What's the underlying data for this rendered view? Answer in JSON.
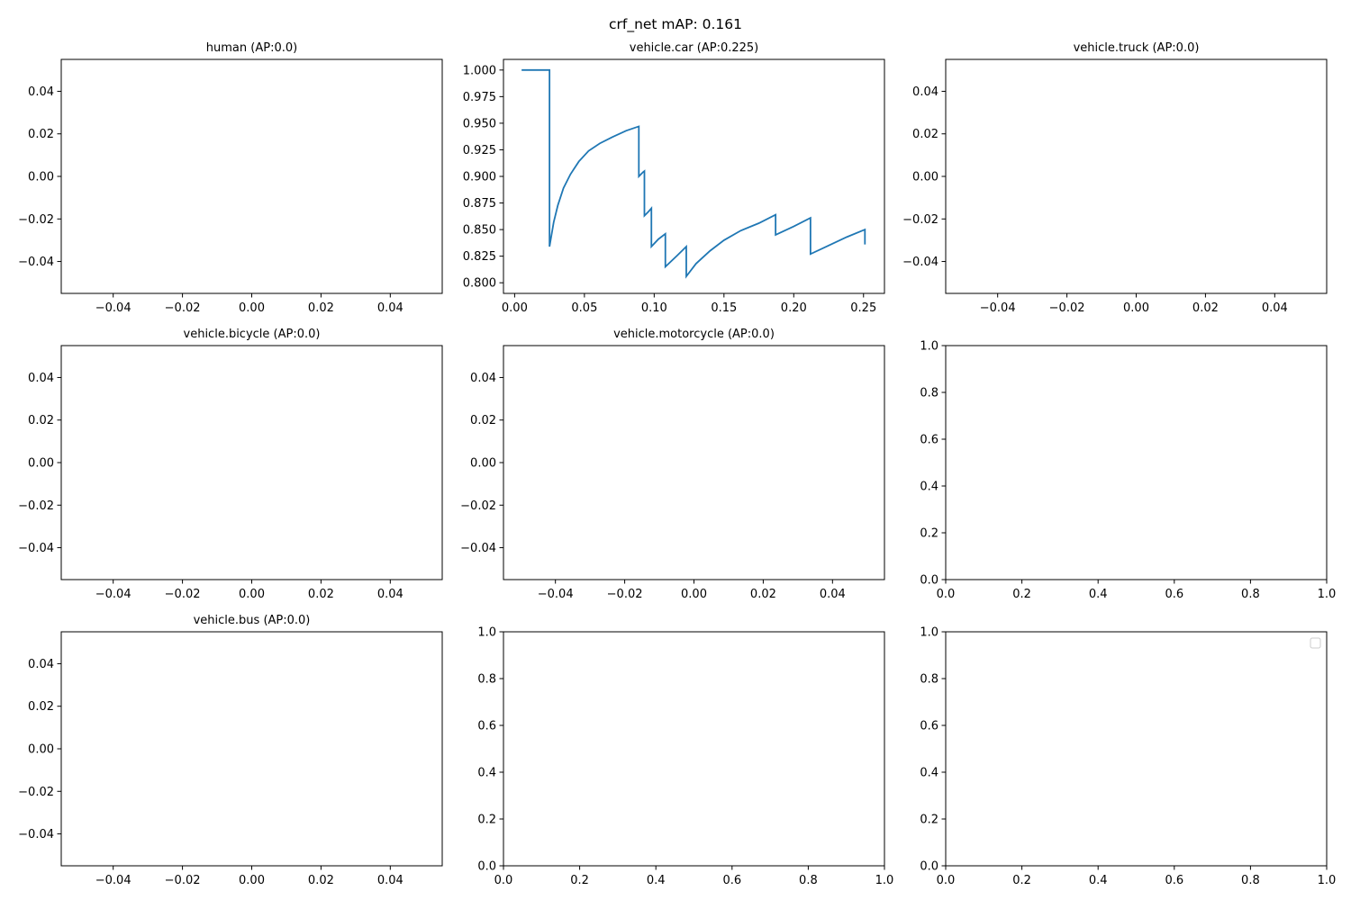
{
  "figure": {
    "suptitle": "crf_net mAP: 0.161"
  },
  "style": {
    "line_color": "#1f77b4",
    "axis_color": "#000000",
    "background": "#ffffff"
  },
  "chart_data": [
    {
      "type": "line",
      "title": "human (AP:0.0)",
      "xlim": [
        -0.055,
        0.055
      ],
      "ylim": [
        -0.055,
        0.055
      ],
      "xticks": [
        -0.04,
        -0.02,
        0.0,
        0.02,
        0.04
      ],
      "xtick_labels": [
        "−0.04",
        "−0.02",
        "0.00",
        "0.02",
        "0.04"
      ],
      "yticks": [
        0.04,
        0.02,
        0.0,
        -0.02,
        -0.04
      ],
      "ytick_labels": [
        "0.04",
        "0.02",
        "0.00",
        "−0.02",
        "−0.04"
      ],
      "series": [],
      "grid": false
    },
    {
      "type": "line",
      "title": "vehicle.car (AP:0.225)",
      "xlim": [
        -0.008,
        0.265
      ],
      "ylim": [
        0.79,
        1.01
      ],
      "xticks": [
        0.0,
        0.05,
        0.1,
        0.15,
        0.2,
        0.25
      ],
      "xtick_labels": [
        "0.00",
        "0.05",
        "0.10",
        "0.15",
        "0.20",
        "0.25"
      ],
      "yticks": [
        1.0,
        0.975,
        0.95,
        0.925,
        0.9,
        0.875,
        0.85,
        0.825,
        0.8
      ],
      "ytick_labels": [
        "1.000",
        "0.975",
        "0.950",
        "0.925",
        "0.900",
        "0.875",
        "0.850",
        "0.825",
        "0.800"
      ],
      "grid": false,
      "series": [
        {
          "x": [
            0.005,
            0.025,
            0.025,
            0.028,
            0.031,
            0.035,
            0.04,
            0.046,
            0.053,
            0.061,
            0.07,
            0.08,
            0.089,
            0.089,
            0.092,
            0.093,
            0.093,
            0.096,
            0.098,
            0.098,
            0.103,
            0.108,
            0.108,
            0.116,
            0.123,
            0.123,
            0.13,
            0.14,
            0.15,
            0.162,
            0.175,
            0.187,
            0.187,
            0.2,
            0.212,
            0.212,
            0.225,
            0.238,
            0.251,
            0.251
          ],
          "y": [
            1.0,
            1.0,
            0.834,
            0.857,
            0.873,
            0.889,
            0.902,
            0.914,
            0.924,
            0.931,
            0.937,
            0.943,
            0.947,
            0.9,
            0.904,
            0.905,
            0.863,
            0.867,
            0.87,
            0.834,
            0.841,
            0.846,
            0.815,
            0.825,
            0.834,
            0.806,
            0.818,
            0.83,
            0.84,
            0.849,
            0.856,
            0.864,
            0.845,
            0.853,
            0.861,
            0.827,
            0.835,
            0.843,
            0.85,
            0.836
          ]
        }
      ]
    },
    {
      "type": "line",
      "title": "vehicle.truck (AP:0.0)",
      "xlim": [
        -0.055,
        0.055
      ],
      "ylim": [
        -0.055,
        0.055
      ],
      "xticks": [
        -0.04,
        -0.02,
        0.0,
        0.02,
        0.04
      ],
      "xtick_labels": [
        "−0.04",
        "−0.02",
        "0.00",
        "0.02",
        "0.04"
      ],
      "yticks": [
        0.04,
        0.02,
        0.0,
        -0.02,
        -0.04
      ],
      "ytick_labels": [
        "0.04",
        "0.02",
        "0.00",
        "−0.02",
        "−0.04"
      ],
      "series": [],
      "grid": false
    },
    {
      "type": "line",
      "title": "vehicle.bicycle (AP:0.0)",
      "xlim": [
        -0.055,
        0.055
      ],
      "ylim": [
        -0.055,
        0.055
      ],
      "xticks": [
        -0.04,
        -0.02,
        0.0,
        0.02,
        0.04
      ],
      "xtick_labels": [
        "−0.04",
        "−0.02",
        "0.00",
        "0.02",
        "0.04"
      ],
      "yticks": [
        0.04,
        0.02,
        0.0,
        -0.02,
        -0.04
      ],
      "ytick_labels": [
        "0.04",
        "0.02",
        "0.00",
        "−0.02",
        "−0.04"
      ],
      "series": [],
      "grid": false
    },
    {
      "type": "line",
      "title": "vehicle.motorcycle (AP:0.0)",
      "xlim": [
        -0.055,
        0.055
      ],
      "ylim": [
        -0.055,
        0.055
      ],
      "xticks": [
        -0.04,
        -0.02,
        0.0,
        0.02,
        0.04
      ],
      "xtick_labels": [
        "−0.04",
        "−0.02",
        "0.00",
        "0.02",
        "0.04"
      ],
      "yticks": [
        0.04,
        0.02,
        0.0,
        -0.02,
        -0.04
      ],
      "ytick_labels": [
        "0.04",
        "0.02",
        "0.00",
        "−0.02",
        "−0.04"
      ],
      "series": [],
      "grid": false
    },
    {
      "type": "line",
      "title": "",
      "xlim": [
        0,
        1
      ],
      "ylim": [
        0,
        1
      ],
      "xticks": [
        0.0,
        0.2,
        0.4,
        0.6,
        0.8,
        1.0
      ],
      "xtick_labels": [
        "0.0",
        "0.2",
        "0.4",
        "0.6",
        "0.8",
        "1.0"
      ],
      "yticks": [
        1.0,
        0.8,
        0.6,
        0.4,
        0.2,
        0.0
      ],
      "ytick_labels": [
        "1.0",
        "0.8",
        "0.6",
        "0.4",
        "0.2",
        "0.0"
      ],
      "series": [],
      "grid": false
    },
    {
      "type": "line",
      "title": "vehicle.bus (AP:0.0)",
      "xlim": [
        -0.055,
        0.055
      ],
      "ylim": [
        -0.055,
        0.055
      ],
      "xticks": [
        -0.04,
        -0.02,
        0.0,
        0.02,
        0.04
      ],
      "xtick_labels": [
        "−0.04",
        "−0.02",
        "0.00",
        "0.02",
        "0.04"
      ],
      "yticks": [
        0.04,
        0.02,
        0.0,
        -0.02,
        -0.04
      ],
      "ytick_labels": [
        "0.04",
        "0.02",
        "0.00",
        "−0.02",
        "−0.04"
      ],
      "series": [],
      "grid": false
    },
    {
      "type": "line",
      "title": "",
      "xlim": [
        0,
        1
      ],
      "ylim": [
        0,
        1
      ],
      "xticks": [
        0.0,
        0.2,
        0.4,
        0.6,
        0.8,
        1.0
      ],
      "xtick_labels": [
        "0.0",
        "0.2",
        "0.4",
        "0.6",
        "0.8",
        "1.0"
      ],
      "yticks": [
        1.0,
        0.8,
        0.6,
        0.4,
        0.2,
        0.0
      ],
      "ytick_labels": [
        "1.0",
        "0.8",
        "0.6",
        "0.4",
        "0.2",
        "0.0"
      ],
      "series": [],
      "grid": false
    },
    {
      "type": "line",
      "title": "",
      "xlim": [
        0,
        1
      ],
      "ylim": [
        0,
        1
      ],
      "xticks": [
        0.0,
        0.2,
        0.4,
        0.6,
        0.8,
        1.0
      ],
      "xtick_labels": [
        "0.0",
        "0.2",
        "0.4",
        "0.6",
        "0.8",
        "1.0"
      ],
      "yticks": [
        1.0,
        0.8,
        0.6,
        0.4,
        0.2,
        0.0
      ],
      "ytick_labels": [
        "1.0",
        "0.8",
        "0.6",
        "0.4",
        "0.2",
        "0.0"
      ],
      "series": [],
      "grid": false,
      "legend": "top-right",
      "legend_entries": []
    }
  ]
}
